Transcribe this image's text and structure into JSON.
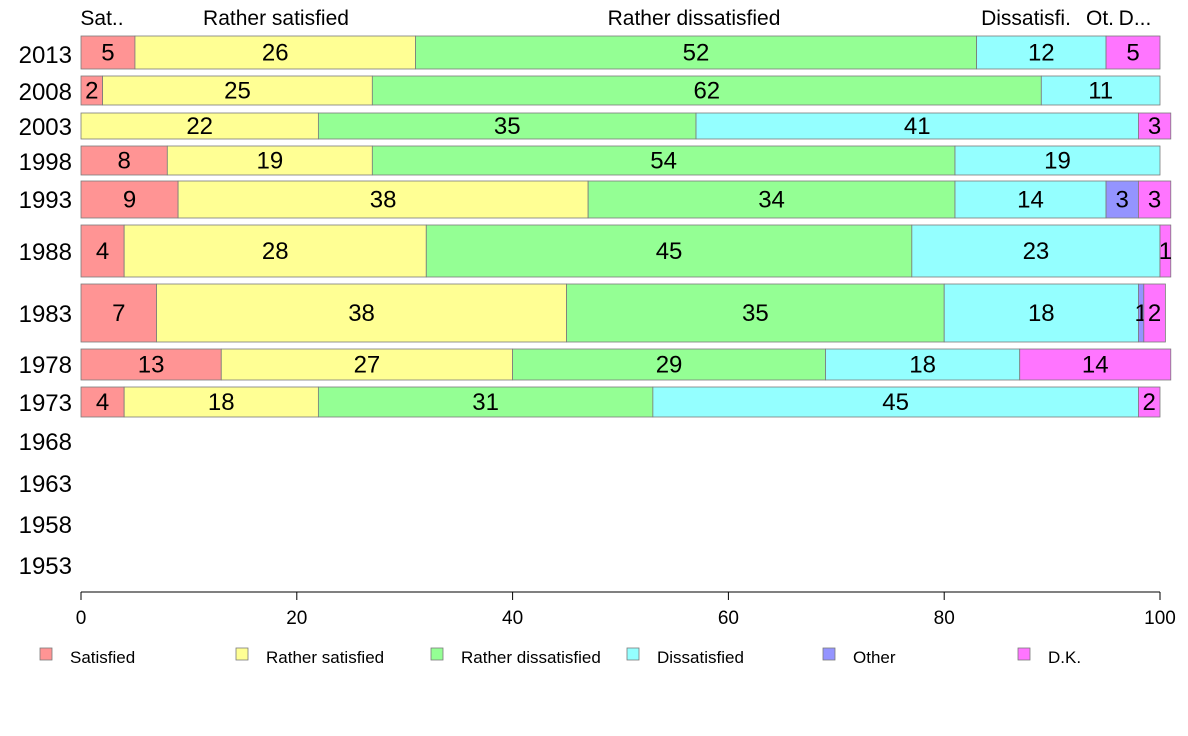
{
  "chart_data": {
    "type": "bar",
    "orientation": "horizontal",
    "stacked": true,
    "xlim": [
      0,
      100
    ],
    "xticks": [
      0,
      20,
      40,
      60,
      80,
      100
    ],
    "grid": false,
    "legend_position": "bottom",
    "header_labels": [
      "Sat..",
      "Rather satisfied",
      "Rather dissatisfied",
      "Dissatisfi.",
      "Ot.",
      "D..."
    ],
    "categories": [
      "2013",
      "2008",
      "2003",
      "1998",
      "1993",
      "1988",
      "1983",
      "1978",
      "1973",
      "1968",
      "1963",
      "1958",
      "1953"
    ],
    "series": [
      {
        "name": "Satisfied",
        "color": "#ff9494",
        "values": [
          5,
          2,
          0,
          8,
          9,
          4,
          7,
          13,
          4,
          null,
          null,
          null,
          null
        ]
      },
      {
        "name": "Rather satisfied",
        "color": "#ffff94",
        "values": [
          26,
          25,
          22,
          19,
          38,
          28,
          38,
          27,
          18,
          null,
          null,
          null,
          null
        ]
      },
      {
        "name": "Rather dissatisfied",
        "color": "#94ff94",
        "values": [
          52,
          62,
          35,
          54,
          34,
          45,
          35,
          29,
          31,
          null,
          null,
          null,
          null
        ]
      },
      {
        "name": "Dissatisfied",
        "color": "#94ffff",
        "values": [
          12,
          11,
          41,
          19,
          14,
          23,
          18,
          18,
          45,
          null,
          null,
          null,
          null
        ]
      },
      {
        "name": "Other",
        "color": "#9494ff",
        "values": [
          0,
          0,
          0,
          0,
          3,
          0,
          0.5,
          0,
          0,
          null,
          null,
          null,
          null
        ]
      },
      {
        "name": "D.K.",
        "color": "#ff75ff",
        "values": [
          5,
          0,
          3,
          0,
          3,
          1,
          2,
          14,
          2,
          null,
          null,
          null,
          null
        ]
      }
    ],
    "segment_labels": [
      [
        "5",
        "26",
        "52",
        "12",
        "",
        "5"
      ],
      [
        "2",
        "25",
        "62",
        "11",
        "",
        ""
      ],
      [
        "",
        "22",
        "35",
        "41",
        "",
        "3"
      ],
      [
        "8",
        "19",
        "54",
        "19",
        "",
        ""
      ],
      [
        "9",
        "38",
        "34",
        "14",
        "3",
        "3"
      ],
      [
        "4",
        "28",
        "45",
        "23",
        "",
        "1"
      ],
      [
        "7",
        "38",
        "35",
        "18",
        "1",
        "2"
      ],
      [
        "13",
        "27",
        "29",
        "18",
        "",
        "14"
      ],
      [
        "4",
        "18",
        "31",
        "45",
        "",
        "2"
      ]
    ]
  }
}
